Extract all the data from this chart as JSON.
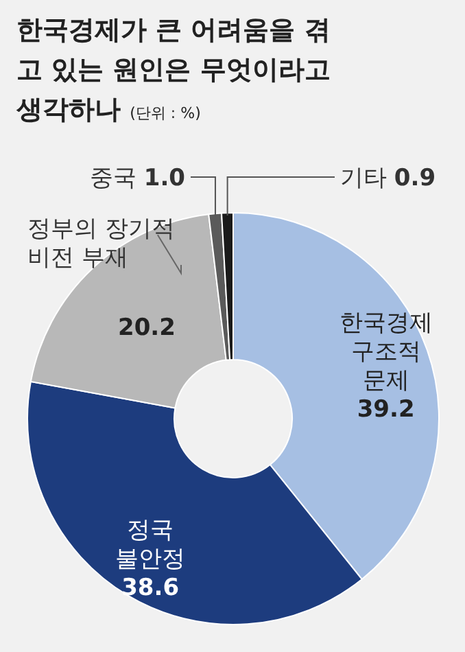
{
  "chart_data": {
    "type": "donut",
    "title": "한국경제가 큰 어려움을 겪고 있는 원인은 무엇이라고 생각하나",
    "subtitle": "(단위 : %)",
    "categories": [
      "한국경제\n구조적\n문제",
      "정국\n불안정",
      "정부의 장기적\n비전 부재",
      "중국",
      "기타"
    ],
    "values": [
      39.2,
      38.6,
      20.2,
      1.0,
      0.9
    ],
    "colors": [
      "#a6bfe3",
      "#1d3c7e",
      "#b8b8b8",
      "#5a5a5a",
      "#1a1a1a"
    ],
    "value_labels": [
      "39.2",
      "38.6",
      "20.2",
      "1.0",
      "0.9"
    ]
  }
}
